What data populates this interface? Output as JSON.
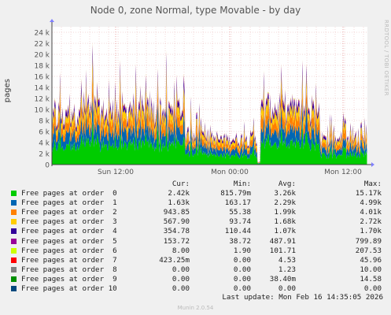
{
  "title": "Node 0, zone Normal, type Movable - by day",
  "side_label": "RRDTOOL / TOBI OETIKER",
  "chart_data": {
    "type": "area",
    "stacked": true,
    "ylabel": "pages",
    "ylim": [
      0,
      25000
    ],
    "y_ticks": [
      0,
      2000,
      4000,
      6000,
      8000,
      10000,
      12000,
      14000,
      16000,
      18000,
      20000,
      22000,
      24000
    ],
    "y_tick_labels": [
      "0",
      "2 k",
      "4 k",
      "6 k",
      "8 k",
      "10 k",
      "12 k",
      "14 k",
      "16 k",
      "18 k",
      "20 k",
      "22 k",
      "24 k"
    ],
    "x_tick_labels": [
      "Sun 12:00",
      "Mon 00:00",
      "Mon 12:00"
    ],
    "grid": true,
    "legend_position": "bottom",
    "columns": [
      "Cur:",
      "Min:",
      "Avg:",
      "Max:"
    ],
    "series": [
      {
        "name": "Free pages at order  0",
        "color": "#00cc00",
        "cur": "2.42k",
        "min": "815.79m",
        "avg": "3.26k",
        "max": "15.17k"
      },
      {
        "name": "Free pages at order  1",
        "color": "#0066b3",
        "cur": "1.63k",
        "min": "163.17",
        "avg": "2.29k",
        "max": "4.99k"
      },
      {
        "name": "Free pages at order  2",
        "color": "#ff8000",
        "cur": "943.85",
        "min": "55.38",
        "avg": "1.99k",
        "max": "4.01k"
      },
      {
        "name": "Free pages at order  3",
        "color": "#ffcc00",
        "cur": "567.90",
        "min": "93.74",
        "avg": "1.68k",
        "max": "2.72k"
      },
      {
        "name": "Free pages at order  4",
        "color": "#330099",
        "cur": "354.78",
        "min": "110.44",
        "avg": "1.07k",
        "max": "1.70k"
      },
      {
        "name": "Free pages at order  5",
        "color": "#990099",
        "cur": "153.72",
        "min": "38.72",
        "avg": "487.91",
        "max": "799.89"
      },
      {
        "name": "Free pages at order  6",
        "color": "#ccff00",
        "cur": "8.00",
        "min": "1.90",
        "avg": "101.71",
        "max": "207.53"
      },
      {
        "name": "Free pages at order  7",
        "color": "#ff0000",
        "cur": "423.25m",
        "min": "0.00",
        "avg": "4.53",
        "max": "45.96"
      },
      {
        "name": "Free pages at order  8",
        "color": "#808080",
        "cur": "0.00",
        "min": "0.00",
        "avg": "1.23",
        "max": "10.00"
      },
      {
        "name": "Free pages at order  9",
        "color": "#008f00",
        "cur": "0.00",
        "min": "0.00",
        "avg": "38.40m",
        "max": "14.58"
      },
      {
        "name": "Free pages at order 10",
        "color": "#00487d",
        "cur": "0.00",
        "min": "0.00",
        "avg": "0.00",
        "max": "0.00"
      }
    ]
  },
  "last_update": "Last update: Mon Feb 16 14:35:05 2026",
  "footer": "Munin 2.0.54"
}
